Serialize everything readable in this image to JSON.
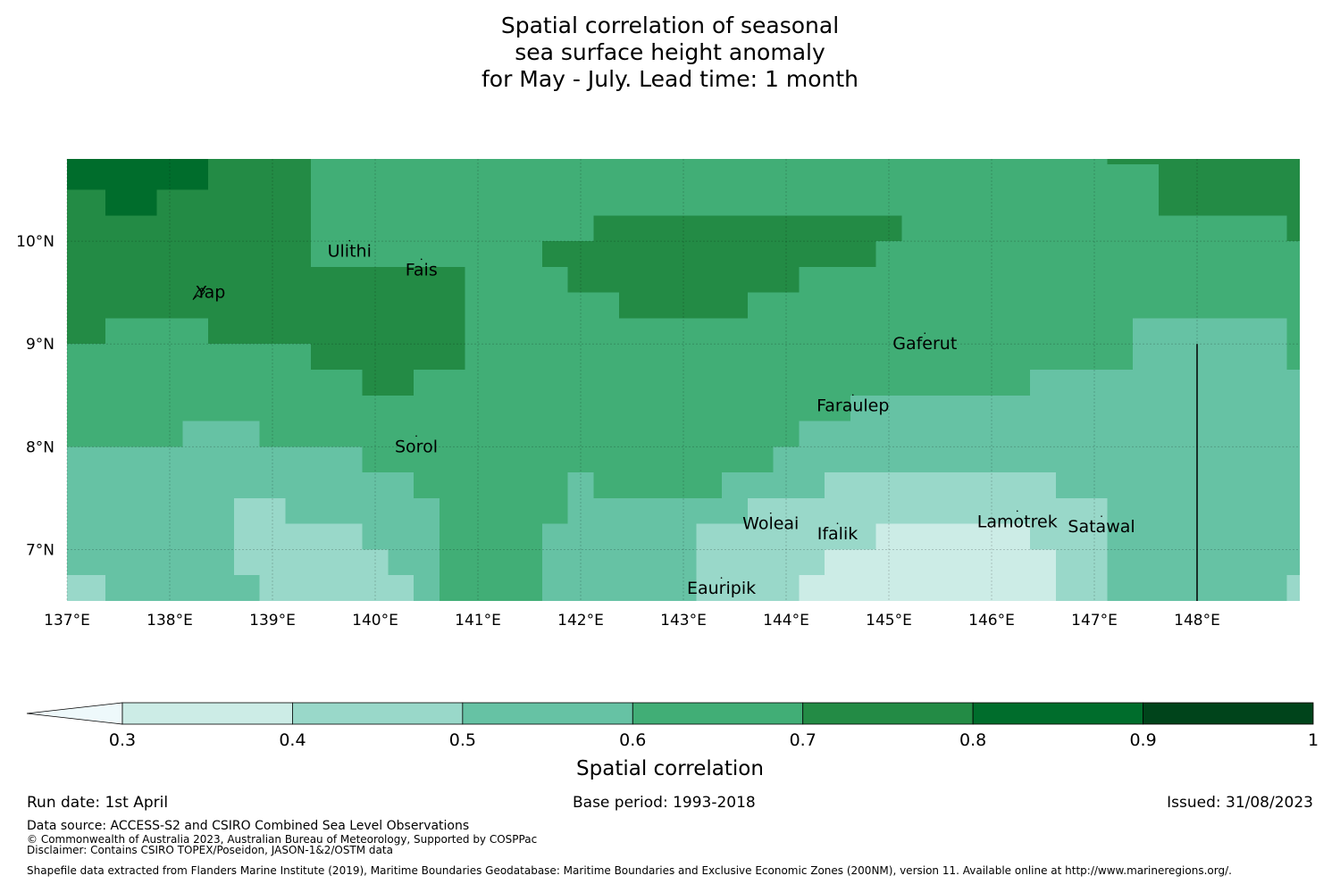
{
  "title_lines": [
    "Spatial correlation of seasonal",
    "sea surface height anomaly",
    "for May - July. Lead time: 1 month"
  ],
  "map": {
    "lon_range": [
      137.0,
      149.0
    ],
    "lat_range": [
      6.5,
      10.8
    ],
    "x_ticks": [
      {
        "lon": 137,
        "label": "137°E"
      },
      {
        "lon": 138,
        "label": "138°E"
      },
      {
        "lon": 139,
        "label": "139°E"
      },
      {
        "lon": 140,
        "label": "140°E"
      },
      {
        "lon": 141,
        "label": "141°E"
      },
      {
        "lon": 142,
        "label": "142°E"
      },
      {
        "lon": 143,
        "label": "143°E"
      },
      {
        "lon": 144,
        "label": "144°E"
      },
      {
        "lon": 145,
        "label": "145°E"
      },
      {
        "lon": 146,
        "label": "146°E"
      },
      {
        "lon": 147,
        "label": "147°E"
      },
      {
        "lon": 148,
        "label": "148°E"
      }
    ],
    "y_ticks": [
      {
        "lat": 10,
        "label": "10°N"
      },
      {
        "lat": 9,
        "label": "9°N"
      },
      {
        "lat": 8,
        "label": "8°N"
      },
      {
        "lat": 7,
        "label": "7°N"
      }
    ],
    "boundary_line": {
      "lon": 148.0,
      "lat_from": 6.5,
      "lat_to": 9.0
    },
    "places": [
      {
        "name": "Ulithi",
        "lon": 139.75,
        "lat": 9.9
      },
      {
        "name": "Fais",
        "lon": 140.45,
        "lat": 9.72
      },
      {
        "name": "Yap",
        "lon": 138.4,
        "lat": 9.5
      },
      {
        "name": "Gaferut",
        "lon": 145.35,
        "lat": 9.0
      },
      {
        "name": "Faraulep",
        "lon": 144.65,
        "lat": 8.4
      },
      {
        "name": "Sorol",
        "lon": 140.4,
        "lat": 8.0
      },
      {
        "name": "Woleai",
        "lon": 143.85,
        "lat": 7.25
      },
      {
        "name": "Ifalik",
        "lon": 144.5,
        "lat": 7.15
      },
      {
        "name": "Lamotrek",
        "lon": 146.25,
        "lat": 7.27
      },
      {
        "name": "Satawal",
        "lon": 147.07,
        "lat": 7.22
      },
      {
        "name": "Eauripik",
        "lon": 143.37,
        "lat": 6.62
      }
    ]
  },
  "chart_data": {
    "type": "heatmap",
    "title": "Spatial correlation of seasonal sea surface height anomaly for May - July. Lead time: 1 month",
    "variable": "Spatial correlation",
    "xlim": [
      137.0,
      149.0
    ],
    "ylim": [
      6.5,
      10.8
    ],
    "levels": [
      0.3,
      0.4,
      0.5,
      0.6,
      0.7,
      0.8,
      0.9,
      1.0
    ],
    "level_colors": [
      "#ccece6",
      "#99d8c9",
      "#66c2a4",
      "#41ae76",
      "#238b45",
      "#006d2c",
      "#00441b"
    ],
    "under_color": "#eef9fb",
    "regions": [
      {
        "value": 0.65,
        "lon_from": 137.0,
        "lon_to": 149.0,
        "lat_from": 6.5,
        "lat_to": 10.8
      },
      {
        "value": 0.75,
        "lon_from": 137.0,
        "lon_to": 139.375,
        "lat_from": 9.0,
        "lat_to": 10.8
      },
      {
        "value": 0.75,
        "lon_from": 139.375,
        "lon_to": 140.875,
        "lat_from": 8.75,
        "lat_to": 9.75
      },
      {
        "value": 0.75,
        "lon_from": 139.875,
        "lon_to": 140.375,
        "lat_from": 8.5,
        "lat_to": 8.75
      },
      {
        "value": 0.75,
        "lon_from": 141.625,
        "lon_to": 144.125,
        "lat_from": 9.75,
        "lat_to": 10.0
      },
      {
        "value": 0.75,
        "lon_from": 141.875,
        "lon_to": 144.125,
        "lat_from": 9.5,
        "lat_to": 9.75
      },
      {
        "value": 0.75,
        "lon_from": 142.375,
        "lon_to": 143.625,
        "lat_from": 9.25,
        "lat_to": 9.5
      },
      {
        "value": 0.75,
        "lon_from": 141.625,
        "lon_to": 144.875,
        "lat_from": 9.75,
        "lat_to": 10.0
      },
      {
        "value": 0.75,
        "lon_from": 142.125,
        "lon_to": 145.125,
        "lat_from": 10.0,
        "lat_to": 10.25
      },
      {
        "value": 0.75,
        "lon_from": 147.125,
        "lon_to": 149.0,
        "lat_from": 10.75,
        "lat_to": 10.8
      },
      {
        "value": 0.75,
        "lon_from": 148.875,
        "lon_to": 149.0,
        "lat_from": 10.0,
        "lat_to": 10.8
      },
      {
        "value": 0.75,
        "lon_from": 147.625,
        "lon_to": 149.0,
        "lat_from": 10.25,
        "lat_to": 10.75
      },
      {
        "value": 0.85,
        "lon_from": 137.0,
        "lon_to": 138.375,
        "lat_from": 10.5,
        "lat_to": 10.8
      },
      {
        "value": 0.85,
        "lon_from": 137.375,
        "lon_to": 137.875,
        "lat_from": 10.25,
        "lat_to": 10.5
      },
      {
        "value": 0.65,
        "lon_from": 139.375,
        "lon_to": 149.0,
        "lat_from": 10.0,
        "lat_to": 10.8
      },
      {
        "value": 0.75,
        "lon_from": 142.125,
        "lon_to": 145.125,
        "lat_from": 10.0,
        "lat_to": 10.25
      },
      {
        "value": 0.75,
        "lon_from": 147.125,
        "lon_to": 149.0,
        "lat_from": 10.75,
        "lat_to": 10.8
      },
      {
        "value": 0.75,
        "lon_from": 147.625,
        "lon_to": 149.0,
        "lat_from": 10.25,
        "lat_to": 10.75
      },
      {
        "value": 0.75,
        "lon_from": 148.875,
        "lon_to": 149.0,
        "lat_from": 10.0,
        "lat_to": 10.25
      },
      {
        "value": 0.65,
        "lon_from": 137.375,
        "lon_to": 138.375,
        "lat_from": 9.0,
        "lat_to": 9.25
      },
      {
        "value": 0.55,
        "lon_from": 147.625,
        "lon_to": 148.875,
        "lat_from": 8.75,
        "lat_to": 9.25
      },
      {
        "value": 0.55,
        "lon_from": 147.375,
        "lon_to": 147.625,
        "lat_from": 8.75,
        "lat_to": 9.25
      },
      {
        "value": 0.55,
        "lon_from": 146.375,
        "lon_to": 149.0,
        "lat_from": 8.5,
        "lat_to": 8.75
      },
      {
        "value": 0.55,
        "lon_from": 144.625,
        "lon_to": 149.0,
        "lat_from": 8.25,
        "lat_to": 8.5
      },
      {
        "value": 0.55,
        "lon_from": 144.125,
        "lon_to": 149.0,
        "lat_from": 8.0,
        "lat_to": 8.25
      },
      {
        "value": 0.55,
        "lon_from": 143.875,
        "lon_to": 149.0,
        "lat_from": 7.75,
        "lat_to": 8.0
      },
      {
        "value": 0.55,
        "lon_from": 143.375,
        "lon_to": 149.0,
        "lat_from": 7.5,
        "lat_to": 7.75
      },
      {
        "value": 0.55,
        "lon_from": 141.875,
        "lon_to": 149.0,
        "lat_from": 7.25,
        "lat_to": 7.5
      },
      {
        "value": 0.55,
        "lon_from": 141.625,
        "lon_to": 149.0,
        "lat_from": 6.5,
        "lat_to": 7.25
      },
      {
        "value": 0.55,
        "lon_from": 138.125,
        "lon_to": 138.875,
        "lat_from": 8.0,
        "lat_to": 8.25
      },
      {
        "value": 0.55,
        "lon_from": 137.0,
        "lon_to": 139.875,
        "lat_from": 7.75,
        "lat_to": 8.0
      },
      {
        "value": 0.55,
        "lon_from": 137.0,
        "lon_to": 140.375,
        "lat_from": 7.5,
        "lat_to": 7.75
      },
      {
        "value": 0.55,
        "lon_from": 137.0,
        "lon_to": 140.625,
        "lat_from": 6.5,
        "lat_to": 7.5
      },
      {
        "value": 0.65,
        "lon_from": 140.625,
        "lon_to": 141.625,
        "lat_from": 6.5,
        "lat_to": 7.5
      },
      {
        "value": 0.65,
        "lon_from": 140.375,
        "lon_to": 141.625,
        "lat_from": 7.5,
        "lat_to": 7.75
      },
      {
        "value": 0.55,
        "lon_from": 141.875,
        "lon_to": 142.125,
        "lat_from": 7.25,
        "lat_to": 7.75
      },
      {
        "value": 0.45,
        "lon_from": 138.625,
        "lon_to": 139.125,
        "lat_from": 7.0,
        "lat_to": 7.5
      },
      {
        "value": 0.45,
        "lon_from": 139.125,
        "lon_to": 139.875,
        "lat_from": 7.0,
        "lat_to": 7.25
      },
      {
        "value": 0.45,
        "lon_from": 138.625,
        "lon_to": 140.125,
        "lat_from": 6.75,
        "lat_to": 7.0
      },
      {
        "value": 0.45,
        "lon_from": 138.875,
        "lon_to": 140.375,
        "lat_from": 6.5,
        "lat_to": 6.75
      },
      {
        "value": 0.45,
        "lon_from": 137.0,
        "lon_to": 137.375,
        "lat_from": 6.5,
        "lat_to": 6.75
      },
      {
        "value": 0.45,
        "lon_from": 143.625,
        "lon_to": 144.375,
        "lat_from": 7.25,
        "lat_to": 7.5
      },
      {
        "value": 0.45,
        "lon_from": 144.375,
        "lon_to": 146.625,
        "lat_from": 7.25,
        "lat_to": 7.75
      },
      {
        "value": 0.45,
        "lon_from": 146.625,
        "lon_to": 147.125,
        "lat_from": 7.25,
        "lat_to": 7.5
      },
      {
        "value": 0.45,
        "lon_from": 143.125,
        "lon_to": 147.125,
        "lat_from": 6.75,
        "lat_to": 7.25
      },
      {
        "value": 0.45,
        "lon_from": 143.125,
        "lon_to": 144.125,
        "lat_from": 6.5,
        "lat_to": 6.75
      },
      {
        "value": 0.45,
        "lon_from": 146.625,
        "lon_to": 147.125,
        "lat_from": 6.5,
        "lat_to": 6.75
      },
      {
        "value": 0.45,
        "lon_from": 148.875,
        "lon_to": 149.0,
        "lat_from": 6.5,
        "lat_to": 6.75
      },
      {
        "value": 0.35,
        "lon_from": 144.875,
        "lon_to": 146.375,
        "lat_from": 6.75,
        "lat_to": 7.25
      },
      {
        "value": 0.35,
        "lon_from": 144.375,
        "lon_to": 146.625,
        "lat_from": 6.75,
        "lat_to": 7.0
      },
      {
        "value": 0.35,
        "lon_from": 144.125,
        "lon_to": 146.625,
        "lat_from": 6.5,
        "lat_to": 6.75
      }
    ]
  },
  "colorbar": {
    "ticks": [
      "0.3",
      "0.4",
      "0.5",
      "0.6",
      "0.7",
      "0.8",
      "0.9",
      "1"
    ],
    "label": "Spatial correlation"
  },
  "footer": {
    "run_date": "Run date: 1st April",
    "base_period": "Base period: 1993-2018",
    "issued": "Issued: 31/08/2023",
    "data_source": "Data source: ACCESS-S2 and CSIRO Combined Sea Level Observations",
    "copyright": "© Commonwealth of Australia 2023, Australian Bureau of Meteorology, Supported by COSPPac",
    "disclaimer": "Disclaimer: Contains CSIRO TOPEX/Poseidon, JASON-1&2/OSTM data",
    "shapefile": "Shapefile data extracted from Flanders Marine Institute (2019), Maritime Boundaries Geodatabase: Maritime Boundaries and Exclusive Economic Zones (200NM), version 11. Available online at http://www.marineregions.org/."
  }
}
